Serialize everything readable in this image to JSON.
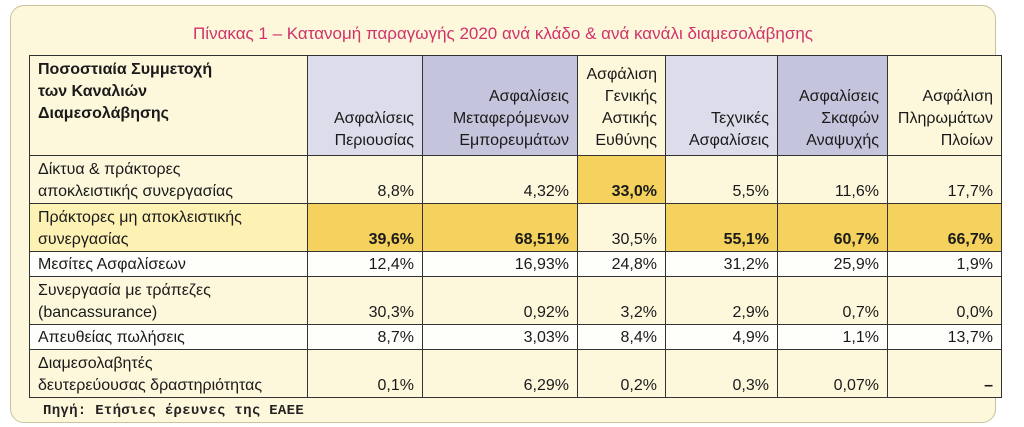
{
  "title": "Πίνακας 1 – Κατανομή παραγωγής 2020 ανά κλάδο & ανά κανάλι διαμεσολάβησης",
  "header": {
    "first": [
      "Ποσοστιαία Συμμετοχή",
      "των Καναλιών",
      "Διαμεσολάβησης"
    ],
    "cols": [
      [
        "Ασφαλίσεις",
        "Περιουσίας"
      ],
      [
        "Ασφαλίσεις",
        "Μεταφερόμενων",
        "Εμπορευμάτων"
      ],
      [
        "Ασφάλιση",
        "Γενικής",
        "Αστικής",
        "Ευθύνης"
      ],
      [
        "Τεχνικές",
        "Ασφαλίσεις"
      ],
      [
        "Ασφαλίσεις",
        "Σκαφών",
        "Αναψυχής"
      ],
      [
        "Ασφάλιση",
        "Πληρωμάτων",
        "Πλοίων"
      ]
    ]
  },
  "rows": [
    {
      "label": [
        "Δίκτυα & πράκτορες",
        "αποκλειστικής συνεργασίας"
      ],
      "values": [
        "8,8%",
        "4,32%",
        "33,0%",
        "5,5%",
        "11,6%",
        "17,7%"
      ]
    },
    {
      "label": [
        "Πράκτορες μη αποκλειστικής",
        "συνεργασίας"
      ],
      "values": [
        "39,6%",
        "68,51%",
        "30,5%",
        "55,1%",
        "60,7%",
        "66,7%"
      ]
    },
    {
      "label": [
        "Μεσίτες Ασφαλίσεων"
      ],
      "values": [
        "12,4%",
        "16,93%",
        "24,8%",
        "31,2%",
        "25,9%",
        "1,9%"
      ]
    },
    {
      "label": [
        "Συνεργασία με τράπεζες",
        "(bancassurance)"
      ],
      "values": [
        "30,3%",
        "0,92%",
        "3,2%",
        "2,9%",
        "0,7%",
        "0,0%"
      ]
    },
    {
      "label": [
        "Απευθείας πωλήσεις"
      ],
      "values": [
        "8,7%",
        "3,03%",
        "8,4%",
        "4,9%",
        "1,1%",
        "13,7%"
      ]
    },
    {
      "label": [
        "Διαμεσολαβητές",
        "δευτερεύουσας δραστηριότητας"
      ],
      "values": [
        "0,1%",
        "6,29%",
        "0,2%",
        "0,3%",
        "0,07%",
        "–"
      ]
    }
  ],
  "source": "Πηγή: Ετήσιες έρευνες της ΕΑΕΕ",
  "colors": {
    "title": "#d0336a",
    "highlight": "#f5d25d",
    "panel": "#fdf7dc"
  }
}
